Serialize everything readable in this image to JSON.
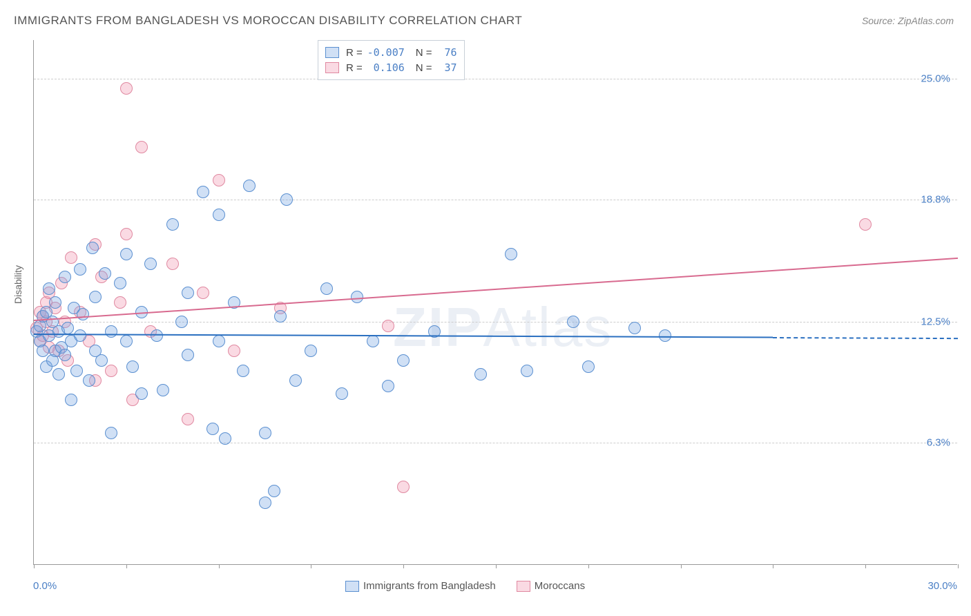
{
  "title": "IMMIGRANTS FROM BANGLADESH VS MOROCCAN DISABILITY CORRELATION CHART",
  "source": "Source: ZipAtlas.com",
  "watermark_zip": "ZIP",
  "watermark_atlas": "Atlas",
  "ylabel": "Disability",
  "chart": {
    "type": "scatter",
    "xlim": [
      0,
      30
    ],
    "ylim": [
      0,
      27
    ],
    "x_min_label": "0.0%",
    "x_max_label": "30.0%",
    "grid_color": "#cccccc",
    "axis_color": "#999999",
    "background_color": "#ffffff",
    "yticks": [
      {
        "value": 6.3,
        "label": "6.3%"
      },
      {
        "value": 12.5,
        "label": "12.5%"
      },
      {
        "value": 18.8,
        "label": "18.8%"
      },
      {
        "value": 25.0,
        "label": "25.0%"
      }
    ],
    "xticks": [
      0,
      3,
      6,
      9,
      12,
      15,
      18,
      21,
      24,
      27,
      30
    ],
    "point_radius": 9,
    "label_fontsize": 15,
    "tick_label_color": "#4a7fc5"
  },
  "series": {
    "bangladesh": {
      "label": "Immigrants from Bangladesh",
      "fill_color": "rgba(120,165,225,0.35)",
      "stroke_color": "#5a8fd0",
      "line_color": "#2a6fc0",
      "r_value": "-0.007",
      "n_value": "76",
      "trend": {
        "y_at_x0": 11.9,
        "y_at_x30": 11.7,
        "dashed_from_x": 24
      },
      "points": [
        [
          0.1,
          12.0
        ],
        [
          0.2,
          11.5
        ],
        [
          0.2,
          12.3
        ],
        [
          0.3,
          11.0
        ],
        [
          0.3,
          12.8
        ],
        [
          0.4,
          10.2
        ],
        [
          0.4,
          13.0
        ],
        [
          0.5,
          11.8
        ],
        [
          0.5,
          14.2
        ],
        [
          0.6,
          10.5
        ],
        [
          0.6,
          12.5
        ],
        [
          0.7,
          11.0
        ],
        [
          0.7,
          13.5
        ],
        [
          0.8,
          9.8
        ],
        [
          0.8,
          12.0
        ],
        [
          0.9,
          11.2
        ],
        [
          1.0,
          14.8
        ],
        [
          1.0,
          10.8
        ],
        [
          1.1,
          12.2
        ],
        [
          1.2,
          11.5
        ],
        [
          1.2,
          8.5
        ],
        [
          1.3,
          13.2
        ],
        [
          1.4,
          10.0
        ],
        [
          1.5,
          15.2
        ],
        [
          1.5,
          11.8
        ],
        [
          1.6,
          12.9
        ],
        [
          1.8,
          9.5
        ],
        [
          1.9,
          16.3
        ],
        [
          2.0,
          11.0
        ],
        [
          2.0,
          13.8
        ],
        [
          2.2,
          10.5
        ],
        [
          2.3,
          15.0
        ],
        [
          2.5,
          12.0
        ],
        [
          2.5,
          6.8
        ],
        [
          2.8,
          14.5
        ],
        [
          3.0,
          11.5
        ],
        [
          3.0,
          16.0
        ],
        [
          3.2,
          10.2
        ],
        [
          3.5,
          8.8
        ],
        [
          3.5,
          13.0
        ],
        [
          3.8,
          15.5
        ],
        [
          4.0,
          11.8
        ],
        [
          4.2,
          9.0
        ],
        [
          4.5,
          17.5
        ],
        [
          4.8,
          12.5
        ],
        [
          5.0,
          10.8
        ],
        [
          5.0,
          14.0
        ],
        [
          5.5,
          19.2
        ],
        [
          5.8,
          7.0
        ],
        [
          6.0,
          11.5
        ],
        [
          6.0,
          18.0
        ],
        [
          6.2,
          6.5
        ],
        [
          6.5,
          13.5
        ],
        [
          6.8,
          10.0
        ],
        [
          7.0,
          19.5
        ],
        [
          7.5,
          6.8
        ],
        [
          7.5,
          3.2
        ],
        [
          8.0,
          12.8
        ],
        [
          8.2,
          18.8
        ],
        [
          8.5,
          9.5
        ],
        [
          9.0,
          11.0
        ],
        [
          9.5,
          14.2
        ],
        [
          10.0,
          8.8
        ],
        [
          10.5,
          13.8
        ],
        [
          11.0,
          11.5
        ],
        [
          11.5,
          9.2
        ],
        [
          12.0,
          10.5
        ],
        [
          13.0,
          12.0
        ],
        [
          14.5,
          9.8
        ],
        [
          15.5,
          16.0
        ],
        [
          16.0,
          10.0
        ],
        [
          17.5,
          12.5
        ],
        [
          18.0,
          10.2
        ],
        [
          19.5,
          12.2
        ],
        [
          20.5,
          11.8
        ],
        [
          7.8,
          3.8
        ]
      ]
    },
    "moroccans": {
      "label": "Moroccans",
      "fill_color": "rgba(240,150,175,0.35)",
      "stroke_color": "#e088a0",
      "line_color": "#d86a8f",
      "r_value": "0.106",
      "n_value": "37",
      "trend": {
        "y_at_x0": 12.6,
        "y_at_x30": 15.8,
        "dashed_from_x": 30
      },
      "points": [
        [
          0.1,
          12.2
        ],
        [
          0.2,
          11.5
        ],
        [
          0.2,
          13.0
        ],
        [
          0.3,
          12.8
        ],
        [
          0.3,
          11.8
        ],
        [
          0.4,
          12.5
        ],
        [
          0.4,
          13.5
        ],
        [
          0.5,
          11.2
        ],
        [
          0.5,
          14.0
        ],
        [
          0.6,
          12.0
        ],
        [
          0.7,
          13.2
        ],
        [
          0.8,
          11.0
        ],
        [
          0.9,
          14.5
        ],
        [
          1.0,
          12.5
        ],
        [
          1.1,
          10.5
        ],
        [
          1.2,
          15.8
        ],
        [
          1.5,
          13.0
        ],
        [
          1.8,
          11.5
        ],
        [
          2.0,
          9.5
        ],
        [
          2.0,
          16.5
        ],
        [
          2.2,
          14.8
        ],
        [
          2.5,
          10.0
        ],
        [
          2.8,
          13.5
        ],
        [
          3.0,
          24.5
        ],
        [
          3.0,
          17.0
        ],
        [
          3.2,
          8.5
        ],
        [
          3.5,
          21.5
        ],
        [
          3.8,
          12.0
        ],
        [
          4.5,
          15.5
        ],
        [
          5.0,
          7.5
        ],
        [
          5.5,
          14.0
        ],
        [
          6.0,
          19.8
        ],
        [
          6.5,
          11.0
        ],
        [
          8.0,
          13.2
        ],
        [
          11.5,
          12.3
        ],
        [
          12.0,
          4.0
        ],
        [
          27.0,
          17.5
        ]
      ]
    }
  },
  "legend_top": {
    "r_label": "R =",
    "n_label": "N ="
  }
}
